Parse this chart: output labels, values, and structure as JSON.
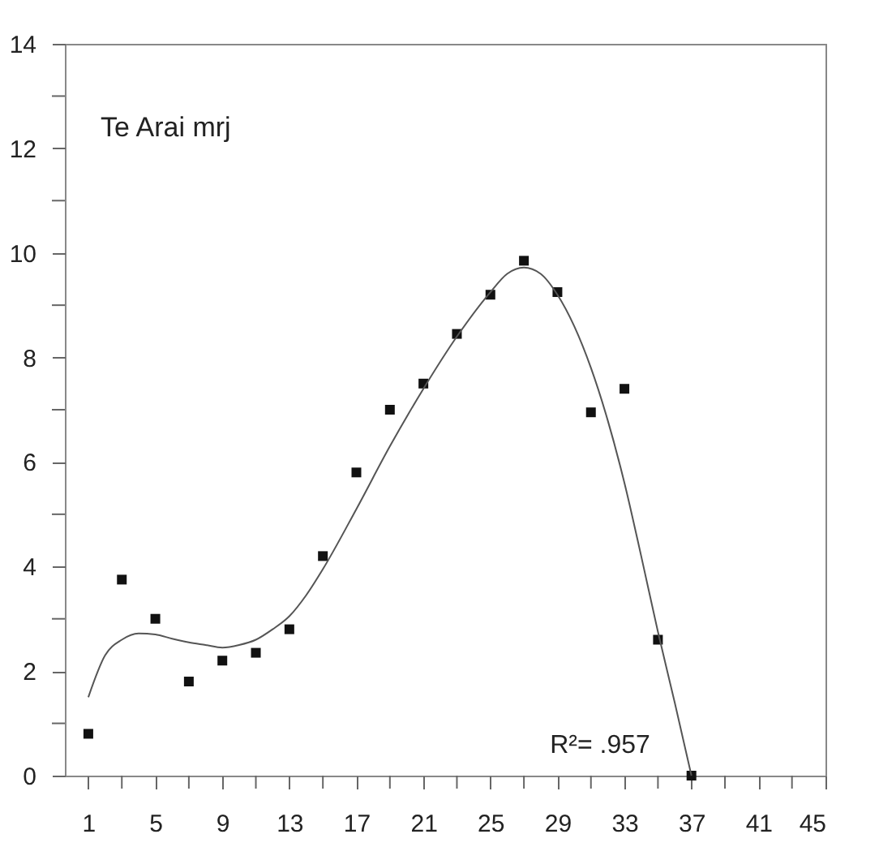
{
  "chart_data": {
    "type": "scatter",
    "title": "Te Arai mrj",
    "annotations": [
      "R²= .957"
    ],
    "marker": "square",
    "grid": false,
    "xlim": [
      -0.4,
      45
    ],
    "ylim": [
      0,
      14
    ],
    "xticks": [
      1,
      {
        "value": 3,
        "label": null
      },
      5,
      {
        "value": 7,
        "label": null
      },
      9,
      {
        "value": 11,
        "label": null
      },
      13,
      {
        "value": 15,
        "label": null
      },
      17,
      {
        "value": 19,
        "label": null
      },
      21,
      {
        "value": 23,
        "label": null
      },
      25,
      {
        "value": 27,
        "label": null
      },
      29,
      {
        "value": 31,
        "label": null
      },
      33,
      {
        "value": 35,
        "label": null
      },
      37,
      {
        "value": 39,
        "label": null
      },
      41,
      {
        "value": 43,
        "label": null
      },
      45
    ],
    "yticks": [
      0,
      {
        "value": 1,
        "label": null
      },
      2,
      {
        "value": 3,
        "label": null
      },
      4,
      {
        "value": 5,
        "label": null
      },
      6,
      {
        "value": 7,
        "label": null
      },
      8,
      {
        "value": 9,
        "label": null
      },
      10,
      {
        "value": 11,
        "label": null
      },
      12,
      {
        "value": 13,
        "label": null
      },
      14
    ],
    "series": [
      {
        "type": "scatter",
        "color": "#111111",
        "x": [
          1,
          3,
          5,
          7,
          9,
          11,
          13,
          15,
          17,
          19,
          21,
          23,
          25,
          27,
          29,
          31,
          33,
          35,
          37
        ],
        "values": [
          0.8,
          3.75,
          3.0,
          1.8,
          2.2,
          2.35,
          2.8,
          4.2,
          5.8,
          7.0,
          7.5,
          8.45,
          9.2,
          9.85,
          9.25,
          6.95,
          7.4,
          2.6,
          0
        ]
      },
      {
        "type": "line",
        "color": "#555555",
        "marker": "none",
        "x": [
          1,
          2,
          3,
          4,
          5,
          6,
          7,
          8,
          9,
          10,
          11,
          12,
          13,
          14,
          15,
          17,
          19,
          21,
          23,
          25,
          26,
          27,
          28,
          29,
          30,
          31,
          32,
          33,
          34,
          35,
          36,
          37
        ],
        "values": [
          1.5,
          2.3,
          2.6,
          2.72,
          2.7,
          2.62,
          2.55,
          2.5,
          2.45,
          2.5,
          2.6,
          2.8,
          3.05,
          3.45,
          3.95,
          5.1,
          6.3,
          7.4,
          8.4,
          9.25,
          9.6,
          9.72,
          9.6,
          9.2,
          8.6,
          7.8,
          6.8,
          5.6,
          4.2,
          2.75,
          1.4,
          0
        ]
      }
    ]
  }
}
